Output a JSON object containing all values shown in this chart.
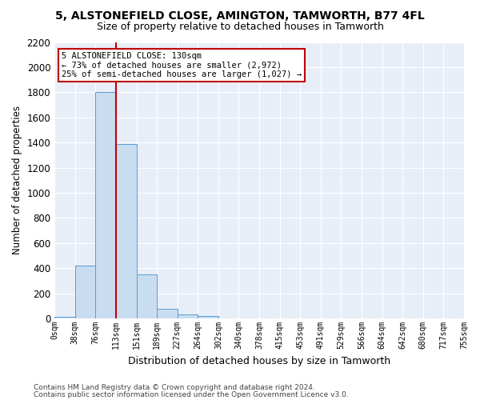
{
  "title": "5, ALSTONEFIELD CLOSE, AMINGTON, TAMWORTH, B77 4FL",
  "subtitle": "Size of property relative to detached houses in Tamworth",
  "xlabel": "Distribution of detached houses by size in Tamworth",
  "ylabel": "Number of detached properties",
  "bar_values": [
    15,
    420,
    1800,
    1390,
    350,
    80,
    30,
    20,
    0,
    0,
    0,
    0,
    0,
    0,
    0,
    0,
    0,
    0,
    0,
    0
  ],
  "bar_labels": [
    "0sqm",
    "38sqm",
    "76sqm",
    "113sqm",
    "151sqm",
    "189sqm",
    "227sqm",
    "264sqm",
    "302sqm",
    "340sqm",
    "378sqm",
    "415sqm",
    "453sqm",
    "491sqm",
    "529sqm",
    "566sqm",
    "604sqm",
    "642sqm",
    "680sqm",
    "717sqm",
    "755sqm"
  ],
  "bar_color": "#c9ddf0",
  "bar_edge_color": "#5b9bd5",
  "vline_x": 3.0,
  "vline_color": "#c00000",
  "annotation_line1": "5 ALSTONEFIELD CLOSE: 130sqm",
  "annotation_line2": "← 73% of detached houses are smaller (2,972)",
  "annotation_line3": "25% of semi-detached houses are larger (1,027) →",
  "annotation_box_color": "#c00000",
  "ylim": [
    0,
    2200
  ],
  "yticks": [
    0,
    200,
    400,
    600,
    800,
    1000,
    1200,
    1400,
    1600,
    1800,
    2000,
    2200
  ],
  "bg_color": "#e8eef8",
  "grid_color": "#ffffff",
  "footer_line1": "Contains HM Land Registry data © Crown copyright and database right 2024.",
  "footer_line2": "Contains public sector information licensed under the Open Government Licence v3.0."
}
